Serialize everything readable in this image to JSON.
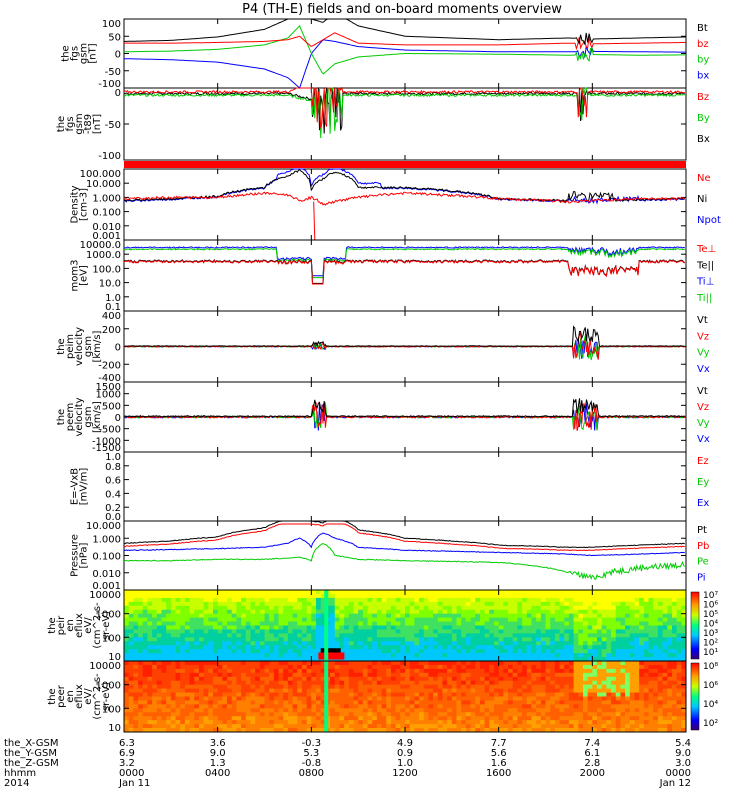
{
  "title": "P4 (TH-E) fields and on-board moments overview",
  "colors": {
    "black": "#000000",
    "red": "#ff0000",
    "green": "#00cc00",
    "blue": "#0000ff"
  },
  "panels": [
    {
      "id": "fgs_gsm",
      "ylabel": [
        "the",
        "fgs",
        "gsm",
        "[nT]"
      ],
      "ticks": [
        "100",
        "50",
        "0",
        "-50",
        "-100"
      ],
      "legend": [
        {
          "text": "Bt",
          "color": "#000000"
        },
        {
          "text": "bz",
          "color": "#ff0000"
        },
        {
          "text": "by",
          "color": "#00cc00"
        },
        {
          "text": "bx",
          "color": "#0000ff"
        }
      ]
    },
    {
      "id": "fgs_gsm_t89",
      "ylabel": [
        "the",
        "fgs",
        "gsm",
        "-t89",
        "[nT]"
      ],
      "ticks": [
        "0",
        "-50",
        "-100"
      ],
      "legend": [
        {
          "text": "Bz",
          "color": "#ff0000"
        },
        {
          "text": "By",
          "color": "#00cc00"
        },
        {
          "text": "Bx",
          "color": "#000000"
        }
      ]
    },
    {
      "id": "density",
      "ylabel": [
        "Density",
        "[cm-3]"
      ],
      "ticks": [
        "100.000",
        "10.000",
        "1.000",
        "0.100",
        "0.010",
        "0.001"
      ],
      "legend": [
        {
          "text": "Ne",
          "color": "#ff0000"
        },
        {
          "text": "Ni",
          "color": "#000000"
        },
        {
          "text": "Npot",
          "color": "#0000ff"
        }
      ]
    },
    {
      "id": "temperature",
      "ylabel": [
        "mom3",
        "[eV]"
      ],
      "ticks": [
        "10000.0",
        "1000.0",
        "100.0",
        "10.0",
        "1.0",
        "0.1"
      ],
      "legend": [
        {
          "text": "Te⊥",
          "color": "#ff0000"
        },
        {
          "text": "Te||",
          "color": "#000000"
        },
        {
          "text": "Ti⊥",
          "color": "#0000ff"
        },
        {
          "text": "Ti||",
          "color": "#00cc00"
        }
      ]
    },
    {
      "id": "peim_velocity",
      "ylabel": [
        "the",
        "peim",
        "velocity",
        "gsm",
        "[km/s]"
      ],
      "ticks": [
        "400",
        "200",
        "0",
        "-200",
        "-400"
      ],
      "legend": [
        {
          "text": "Vt",
          "color": "#000000"
        },
        {
          "text": "Vz",
          "color": "#ff0000"
        },
        {
          "text": "Vy",
          "color": "#00cc00"
        },
        {
          "text": "Vx",
          "color": "#0000ff"
        }
      ]
    },
    {
      "id": "peem_velocity",
      "ylabel": [
        "the",
        "peem",
        "velocity",
        "gsm",
        "[km/s]"
      ],
      "ticks": [
        "1500",
        "1000",
        "500",
        "0",
        "-500",
        "-1000",
        "-1500"
      ],
      "legend": [
        {
          "text": "Vt",
          "color": "#000000"
        },
        {
          "text": "Vz",
          "color": "#ff0000"
        },
        {
          "text": "Vy",
          "color": "#00cc00"
        },
        {
          "text": "Vx",
          "color": "#0000ff"
        }
      ]
    },
    {
      "id": "efield",
      "ylabel": [
        "E=-VxB",
        "[mV/m]"
      ],
      "ticks": [
        "1.0",
        "0.8",
        "0.6",
        "0.4",
        "0.2",
        "0.0"
      ],
      "legend": [
        {
          "text": "Ez",
          "color": "#ff0000"
        },
        {
          "text": "Ey",
          "color": "#00cc00"
        },
        {
          "text": "Ex",
          "color": "#0000ff"
        }
      ]
    },
    {
      "id": "pressure",
      "ylabel": [
        "Pressure",
        "[nPa]"
      ],
      "ticks": [
        "10.000",
        "1.000",
        "0.100",
        "0.010",
        "0.001"
      ],
      "legend": [
        {
          "text": "Pt",
          "color": "#000000"
        },
        {
          "text": "Pb",
          "color": "#ff0000"
        },
        {
          "text": "Pe",
          "color": "#00cc00"
        },
        {
          "text": "Pi",
          "color": "#0000ff"
        }
      ]
    },
    {
      "id": "peir_spec",
      "ylabel": [
        "the",
        "peir",
        "en",
        "eflux",
        "eV/",
        "(cm^2-s-",
        "sr-eV)"
      ],
      "ticks": [
        "10000",
        "1000",
        "100",
        "10"
      ],
      "colorbar": [
        "10⁷",
        "10⁶",
        "10⁵",
        "10⁴",
        "10³",
        "10²",
        "10¹"
      ]
    },
    {
      "id": "peer_spec",
      "ylabel": [
        "the",
        "peer",
        "en",
        "eflux",
        "eV/",
        "(cm^2-s-",
        "sr-eV)"
      ],
      "ticks": [
        "10000",
        "1000",
        "100",
        "10"
      ],
      "colorbar": [
        "10⁸",
        "10⁶",
        "10⁴",
        "10²"
      ]
    }
  ],
  "xaxis": {
    "rows": [
      {
        "label": "the_X-GSM",
        "values": [
          "6.3",
          "3.6",
          "-0.3",
          "4.9",
          "7.7",
          "7.4",
          "5.4"
        ]
      },
      {
        "label": "the_Y-GSM",
        "values": [
          "6.9",
          "9.0",
          "5.3",
          "0.9",
          "5.6",
          "6.1",
          "9.0"
        ]
      },
      {
        "label": "the_Z-GSM",
        "values": [
          "3.2",
          "1.3",
          "-0.8",
          "1.0",
          "1.6",
          "2.8",
          "3.0"
        ]
      },
      {
        "label": "hhmm",
        "values": [
          "0000",
          "0400",
          "0800",
          "1200",
          "1600",
          "2000",
          "0000"
        ]
      },
      {
        "label": "2014",
        "values": [
          "Jan 11",
          "",
          "",
          "",
          "",
          "",
          "Jan 12"
        ]
      }
    ]
  },
  "chart_data": {
    "type": "line",
    "title": "P4 (TH-E) fields and on-board moments overview",
    "x_units": "hhmm, 2014 Jan 11 0000 to Jan 12 0000",
    "x_ticks": [
      "0000",
      "0400",
      "0800",
      "1200",
      "1600",
      "2000",
      "0000"
    ],
    "approx_x_hours": [
      0,
      2,
      4,
      6,
      7,
      7.5,
      8,
      8.5,
      9,
      10,
      12,
      16,
      19,
      20,
      22,
      24
    ],
    "series": [
      {
        "name": "Bt",
        "panel": "fgs_gsm",
        "values": [
          35,
          38,
          48,
          70,
          100,
          150,
          100,
          90,
          120,
          80,
          50,
          40,
          45,
          42,
          45,
          48
        ]
      },
      {
        "name": "bz",
        "panel": "fgs_gsm",
        "values": [
          30,
          30,
          32,
          35,
          40,
          50,
          20,
          40,
          60,
          30,
          25,
          25,
          30,
          28,
          30,
          32
        ]
      },
      {
        "name": "by",
        "panel": "fgs_gsm",
        "values": [
          5,
          7,
          12,
          25,
          45,
          80,
          0,
          -60,
          -30,
          -10,
          0,
          -2,
          -5,
          -3,
          -5,
          -4
        ]
      },
      {
        "name": "bx",
        "panel": "fgs_gsm",
        "values": [
          -15,
          -18,
          -25,
          -45,
          -70,
          -100,
          0,
          40,
          35,
          20,
          10,
          5,
          5,
          6,
          5,
          4
        ]
      },
      {
        "name": "Ni",
        "panel": "density",
        "values": [
          0.6,
          0.8,
          1.2,
          5,
          30,
          80,
          3,
          20,
          60,
          5,
          5,
          0.8,
          0.6,
          0.5,
          0.7,
          0.8
        ]
      },
      {
        "name": "Ne",
        "panel": "density",
        "values": [
          0.8,
          1.0,
          1.0,
          2,
          1.5,
          0.5,
          1.0,
          0.3,
          0.5,
          1.0,
          2,
          0.8,
          0.5,
          0.6,
          0.8,
          0.8
        ]
      },
      {
        "name": "Pt",
        "panel": "pressure",
        "values": [
          0.5,
          0.7,
          1.2,
          4,
          12,
          30,
          10,
          8,
          15,
          3,
          1,
          0.4,
          0.3,
          0.3,
          0.4,
          0.5
        ]
      },
      {
        "name": "Pi",
        "panel": "pressure",
        "values": [
          0.2,
          0.22,
          0.25,
          0.3,
          0.5,
          1,
          0.3,
          2,
          1,
          0.3,
          0.2,
          0.15,
          0.12,
          0.1,
          0.12,
          0.15
        ]
      },
      {
        "name": "Pe",
        "panel": "pressure",
        "values": [
          0.05,
          0.05,
          0.06,
          0.06,
          0.07,
          0.08,
          0.05,
          0.5,
          0.1,
          0.06,
          0.05,
          0.04,
          0.01,
          0.005,
          0.02,
          0.03
        ]
      }
    ],
    "grid": false
  }
}
